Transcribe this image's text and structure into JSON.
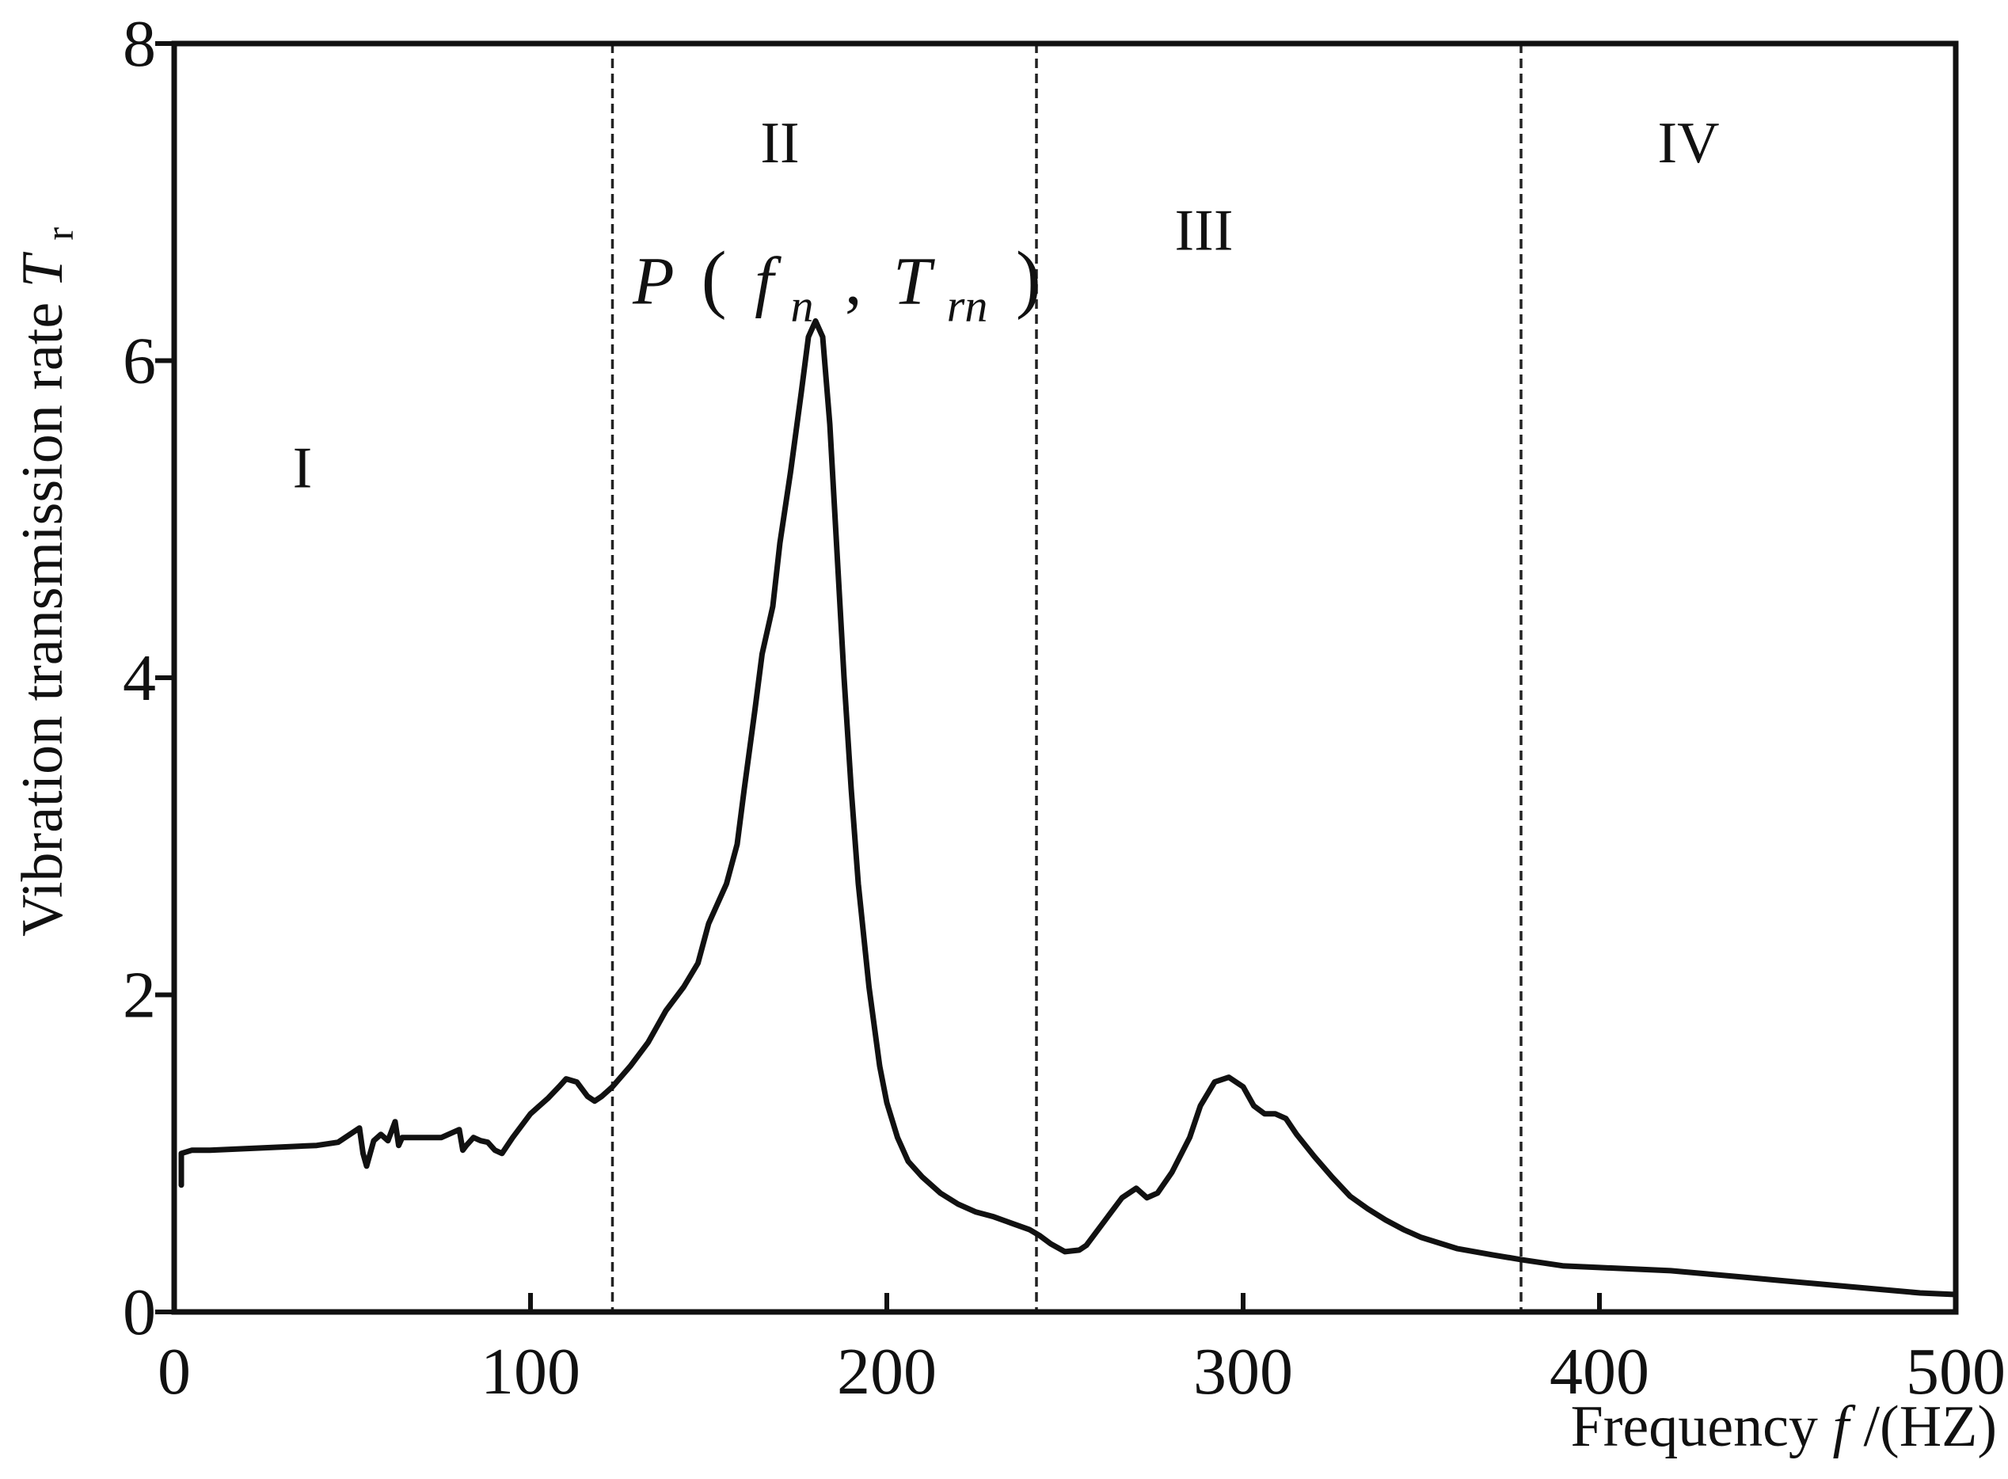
{
  "chart_data": {
    "type": "line",
    "title": "",
    "xlabel_prefix": "Frequency ",
    "xlabel_var": "f",
    "xlabel_suffix": "/(HZ)",
    "ylabel_main": "Vibration transmission rate ",
    "ylabel_var": "T",
    "ylabel_sub": "r",
    "xlim": [
      0,
      500
    ],
    "ylim": [
      0,
      8
    ],
    "xticks": [
      0,
      100,
      200,
      300,
      400,
      500
    ],
    "yticks": [
      0,
      2,
      4,
      6,
      8
    ],
    "boundaries": [
      123,
      242,
      378
    ],
    "regions": [
      {
        "label": "I",
        "x": 36,
        "y": 5.2
      },
      {
        "label": "II",
        "x": 170,
        "y": 7.25
      },
      {
        "label": "III",
        "x": 289,
        "y": 6.7
      },
      {
        "label": "IV",
        "x": 425,
        "y": 7.25
      }
    ],
    "peak_annotation": {
      "P": "P",
      "open": "(",
      "f": "f",
      "f_sub": "n",
      "comma": ",",
      "T": "T",
      "T_sub": "rn",
      "close": ")",
      "x": 186,
      "y": 6.25
    },
    "series": [
      {
        "name": "Vibration transmission rate",
        "x": [
          2,
          2,
          5,
          10,
          20,
          30,
          40,
          46,
          52,
          53,
          54,
          56,
          58,
          60,
          62,
          63,
          64,
          66,
          70,
          75,
          80,
          81,
          82,
          84,
          86,
          88,
          90,
          92,
          95,
          100,
          105,
          108,
          110,
          113,
          116,
          118,
          120,
          123,
          128,
          133,
          138,
          143,
          147,
          150,
          155,
          158,
          160,
          163,
          165,
          168,
          170,
          173,
          176,
          178,
          180,
          182,
          184,
          186,
          188,
          190,
          192,
          195,
          198,
          200,
          203,
          206,
          210,
          215,
          220,
          225,
          230,
          235,
          240,
          243,
          246,
          250,
          254,
          256,
          258,
          262,
          266,
          270,
          273,
          276,
          280,
          285,
          288,
          292,
          296,
          300,
          303,
          306,
          309,
          312,
          315,
          320,
          325,
          330,
          335,
          340,
          345,
          350,
          360,
          370,
          378,
          390,
          400,
          410,
          420,
          430,
          440,
          450,
          460,
          470,
          480,
          490,
          500
        ],
        "values": [
          0.8,
          1.0,
          1.02,
          1.02,
          1.03,
          1.04,
          1.05,
          1.07,
          1.16,
          1.0,
          0.92,
          1.08,
          1.12,
          1.08,
          1.2,
          1.05,
          1.1,
          1.1,
          1.1,
          1.1,
          1.15,
          1.02,
          1.05,
          1.1,
          1.08,
          1.07,
          1.02,
          1.0,
          1.1,
          1.25,
          1.35,
          1.42,
          1.47,
          1.45,
          1.36,
          1.33,
          1.36,
          1.42,
          1.55,
          1.7,
          1.9,
          2.05,
          2.2,
          2.45,
          2.7,
          2.95,
          3.3,
          3.8,
          4.15,
          4.45,
          4.85,
          5.3,
          5.8,
          6.15,
          6.25,
          6.15,
          5.6,
          4.8,
          4.0,
          3.3,
          2.7,
          2.05,
          1.55,
          1.32,
          1.1,
          0.95,
          0.85,
          0.75,
          0.68,
          0.63,
          0.6,
          0.56,
          0.52,
          0.48,
          0.43,
          0.38,
          0.39,
          0.42,
          0.48,
          0.6,
          0.72,
          0.78,
          0.72,
          0.75,
          0.88,
          1.1,
          1.3,
          1.45,
          1.48,
          1.42,
          1.3,
          1.25,
          1.25,
          1.22,
          1.12,
          0.98,
          0.85,
          0.73,
          0.65,
          0.58,
          0.52,
          0.47,
          0.4,
          0.36,
          0.33,
          0.29,
          0.28,
          0.27,
          0.26,
          0.24,
          0.22,
          0.2,
          0.18,
          0.16,
          0.14,
          0.12,
          0.11
        ]
      }
    ]
  }
}
